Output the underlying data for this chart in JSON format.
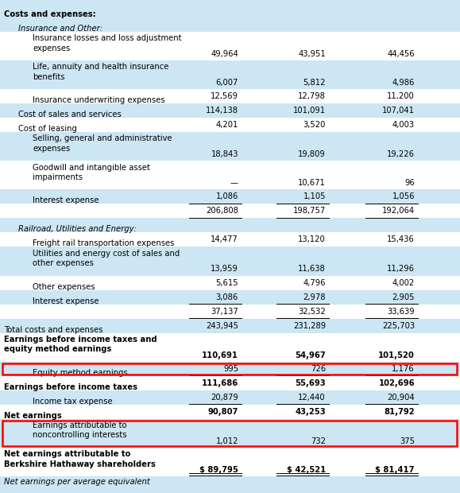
{
  "light_bg": "#cce6f4",
  "white_bg": "#ffffff",
  "text_color": "#000000",
  "font_size": 7.2,
  "footer": "Net earnings per average equivalent",
  "rows": [
    {
      "label": "Costs and expenses:",
      "col1": "",
      "col2": "",
      "col3": "",
      "indent": 0,
      "bold": true,
      "italic": false,
      "bg": "light",
      "border_bottom": false,
      "rh": 1
    },
    {
      "label": "Insurance and Other:",
      "col1": "",
      "col2": "",
      "col3": "",
      "indent": 1,
      "bold": false,
      "italic": true,
      "bg": "light",
      "border_bottom": false,
      "rh": 1
    },
    {
      "label": "Insurance losses and loss adjustment\nexpenses",
      "col1": "49,964",
      "col2": "43,951",
      "col3": "44,456",
      "indent": 2,
      "bold": false,
      "italic": false,
      "bg": "white",
      "border_bottom": false,
      "rh": 2
    },
    {
      "label": "Life, annuity and health insurance\nbenefits",
      "col1": "6,007",
      "col2": "5,812",
      "col3": "4,986",
      "indent": 2,
      "bold": false,
      "italic": false,
      "bg": "light",
      "border_bottom": false,
      "rh": 2
    },
    {
      "label": "Insurance underwriting expenses",
      "col1": "12,569",
      "col2": "12,798",
      "col3": "11,200",
      "indent": 2,
      "bold": false,
      "italic": false,
      "bg": "white",
      "border_bottom": false,
      "rh": 1
    },
    {
      "label": "Cost of sales and services",
      "col1": "114,138",
      "col2": "101,091",
      "col3": "107,041",
      "indent": 1,
      "bold": false,
      "italic": false,
      "bg": "light",
      "border_bottom": false,
      "rh": 1
    },
    {
      "label": "Cost of leasing",
      "col1": "4,201",
      "col2": "3,520",
      "col3": "4,003",
      "indent": 1,
      "bold": false,
      "italic": false,
      "bg": "white",
      "border_bottom": false,
      "rh": 1
    },
    {
      "label": "Selling, general and administrative\nexpenses",
      "col1": "18,843",
      "col2": "19,809",
      "col3": "19,226",
      "indent": 2,
      "bold": false,
      "italic": false,
      "bg": "light",
      "border_bottom": false,
      "rh": 2
    },
    {
      "label": "Goodwill and intangible asset\nimpairments",
      "col1": "—",
      "col2": "10,671",
      "col3": "96",
      "indent": 2,
      "bold": false,
      "italic": false,
      "bg": "white",
      "border_bottom": false,
      "rh": 2
    },
    {
      "label": "Interest expense",
      "col1": "1,086",
      "col2": "1,105",
      "col3": "1,056",
      "indent": 2,
      "bold": false,
      "italic": false,
      "bg": "light",
      "border_bottom": true,
      "rh": 1
    },
    {
      "label": "",
      "col1": "206,808",
      "col2": "198,757",
      "col3": "192,064",
      "indent": 2,
      "bold": false,
      "italic": false,
      "bg": "white",
      "border_bottom": true,
      "rh": 1
    },
    {
      "label": "Railroad, Utilities and Energy:",
      "col1": "",
      "col2": "",
      "col3": "",
      "indent": 1,
      "bold": false,
      "italic": true,
      "bg": "light",
      "border_bottom": false,
      "rh": 1
    },
    {
      "label": "Freight rail transportation expenses",
      "col1": "14,477",
      "col2": "13,120",
      "col3": "15,436",
      "indent": 2,
      "bold": false,
      "italic": false,
      "bg": "white",
      "border_bottom": false,
      "rh": 1
    },
    {
      "label": "Utilities and energy cost of sales and\nother expenses",
      "col1": "13,959",
      "col2": "11,638",
      "col3": "11,296",
      "indent": 2,
      "bold": false,
      "italic": false,
      "bg": "light",
      "border_bottom": false,
      "rh": 2
    },
    {
      "label": "Other expenses",
      "col1": "5,615",
      "col2": "4,796",
      "col3": "4,002",
      "indent": 2,
      "bold": false,
      "italic": false,
      "bg": "white",
      "border_bottom": false,
      "rh": 1
    },
    {
      "label": "Interest expense",
      "col1": "3,086",
      "col2": "2,978",
      "col3": "2,905",
      "indent": 2,
      "bold": false,
      "italic": false,
      "bg": "light",
      "border_bottom": true,
      "rh": 1
    },
    {
      "label": "",
      "col1": "37,137",
      "col2": "32,532",
      "col3": "33,639",
      "indent": 2,
      "bold": false,
      "italic": false,
      "bg": "white",
      "border_bottom": true,
      "rh": 1
    },
    {
      "label": "Total costs and expenses",
      "col1": "243,945",
      "col2": "231,289",
      "col3": "225,703",
      "indent": 0,
      "bold": false,
      "italic": false,
      "bg": "light",
      "border_bottom": false,
      "rh": 1
    },
    {
      "label": "Earnings before income taxes and\nequity method earnings",
      "col1": "110,691",
      "col2": "54,967",
      "col3": "101,520",
      "indent": 0,
      "bold": true,
      "italic": false,
      "bg": "white",
      "border_bottom": false,
      "rh": 2
    },
    {
      "label": "Equity method earnings",
      "col1": "995",
      "col2": "726",
      "col3": "1,176",
      "indent": 2,
      "bold": false,
      "italic": false,
      "bg": "light",
      "border_bottom": true,
      "rh": 1,
      "red_box": true
    },
    {
      "label": "Earnings before income taxes",
      "col1": "111,686",
      "col2": "55,693",
      "col3": "102,696",
      "indent": 0,
      "bold": true,
      "italic": false,
      "bg": "white",
      "border_bottom": false,
      "rh": 1
    },
    {
      "label": "Income tax expense",
      "col1": "20,879",
      "col2": "12,440",
      "col3": "20,904",
      "indent": 2,
      "bold": false,
      "italic": false,
      "bg": "light",
      "border_bottom": true,
      "rh": 1
    },
    {
      "label": "Net earnings",
      "col1": "90,807",
      "col2": "43,253",
      "col3": "81,792",
      "indent": 0,
      "bold": true,
      "italic": false,
      "bg": "white",
      "border_bottom": false,
      "rh": 1
    },
    {
      "label": "Earnings attributable to\nnoncontrolling interests",
      "col1": "1,012",
      "col2": "732",
      "col3": "375",
      "indent": 2,
      "bold": false,
      "italic": false,
      "bg": "light",
      "border_bottom": false,
      "rh": 2,
      "red_box": true
    },
    {
      "label": "Net earnings attributable to\nBerkshire Hathaway shareholders",
      "col1": "$ 89,795",
      "col2": "$ 42,521",
      "col3": "$ 81,417",
      "indent": 0,
      "bold": true,
      "italic": false,
      "bg": "white",
      "border_bottom": false,
      "rh": 2,
      "double_underline": true
    }
  ]
}
